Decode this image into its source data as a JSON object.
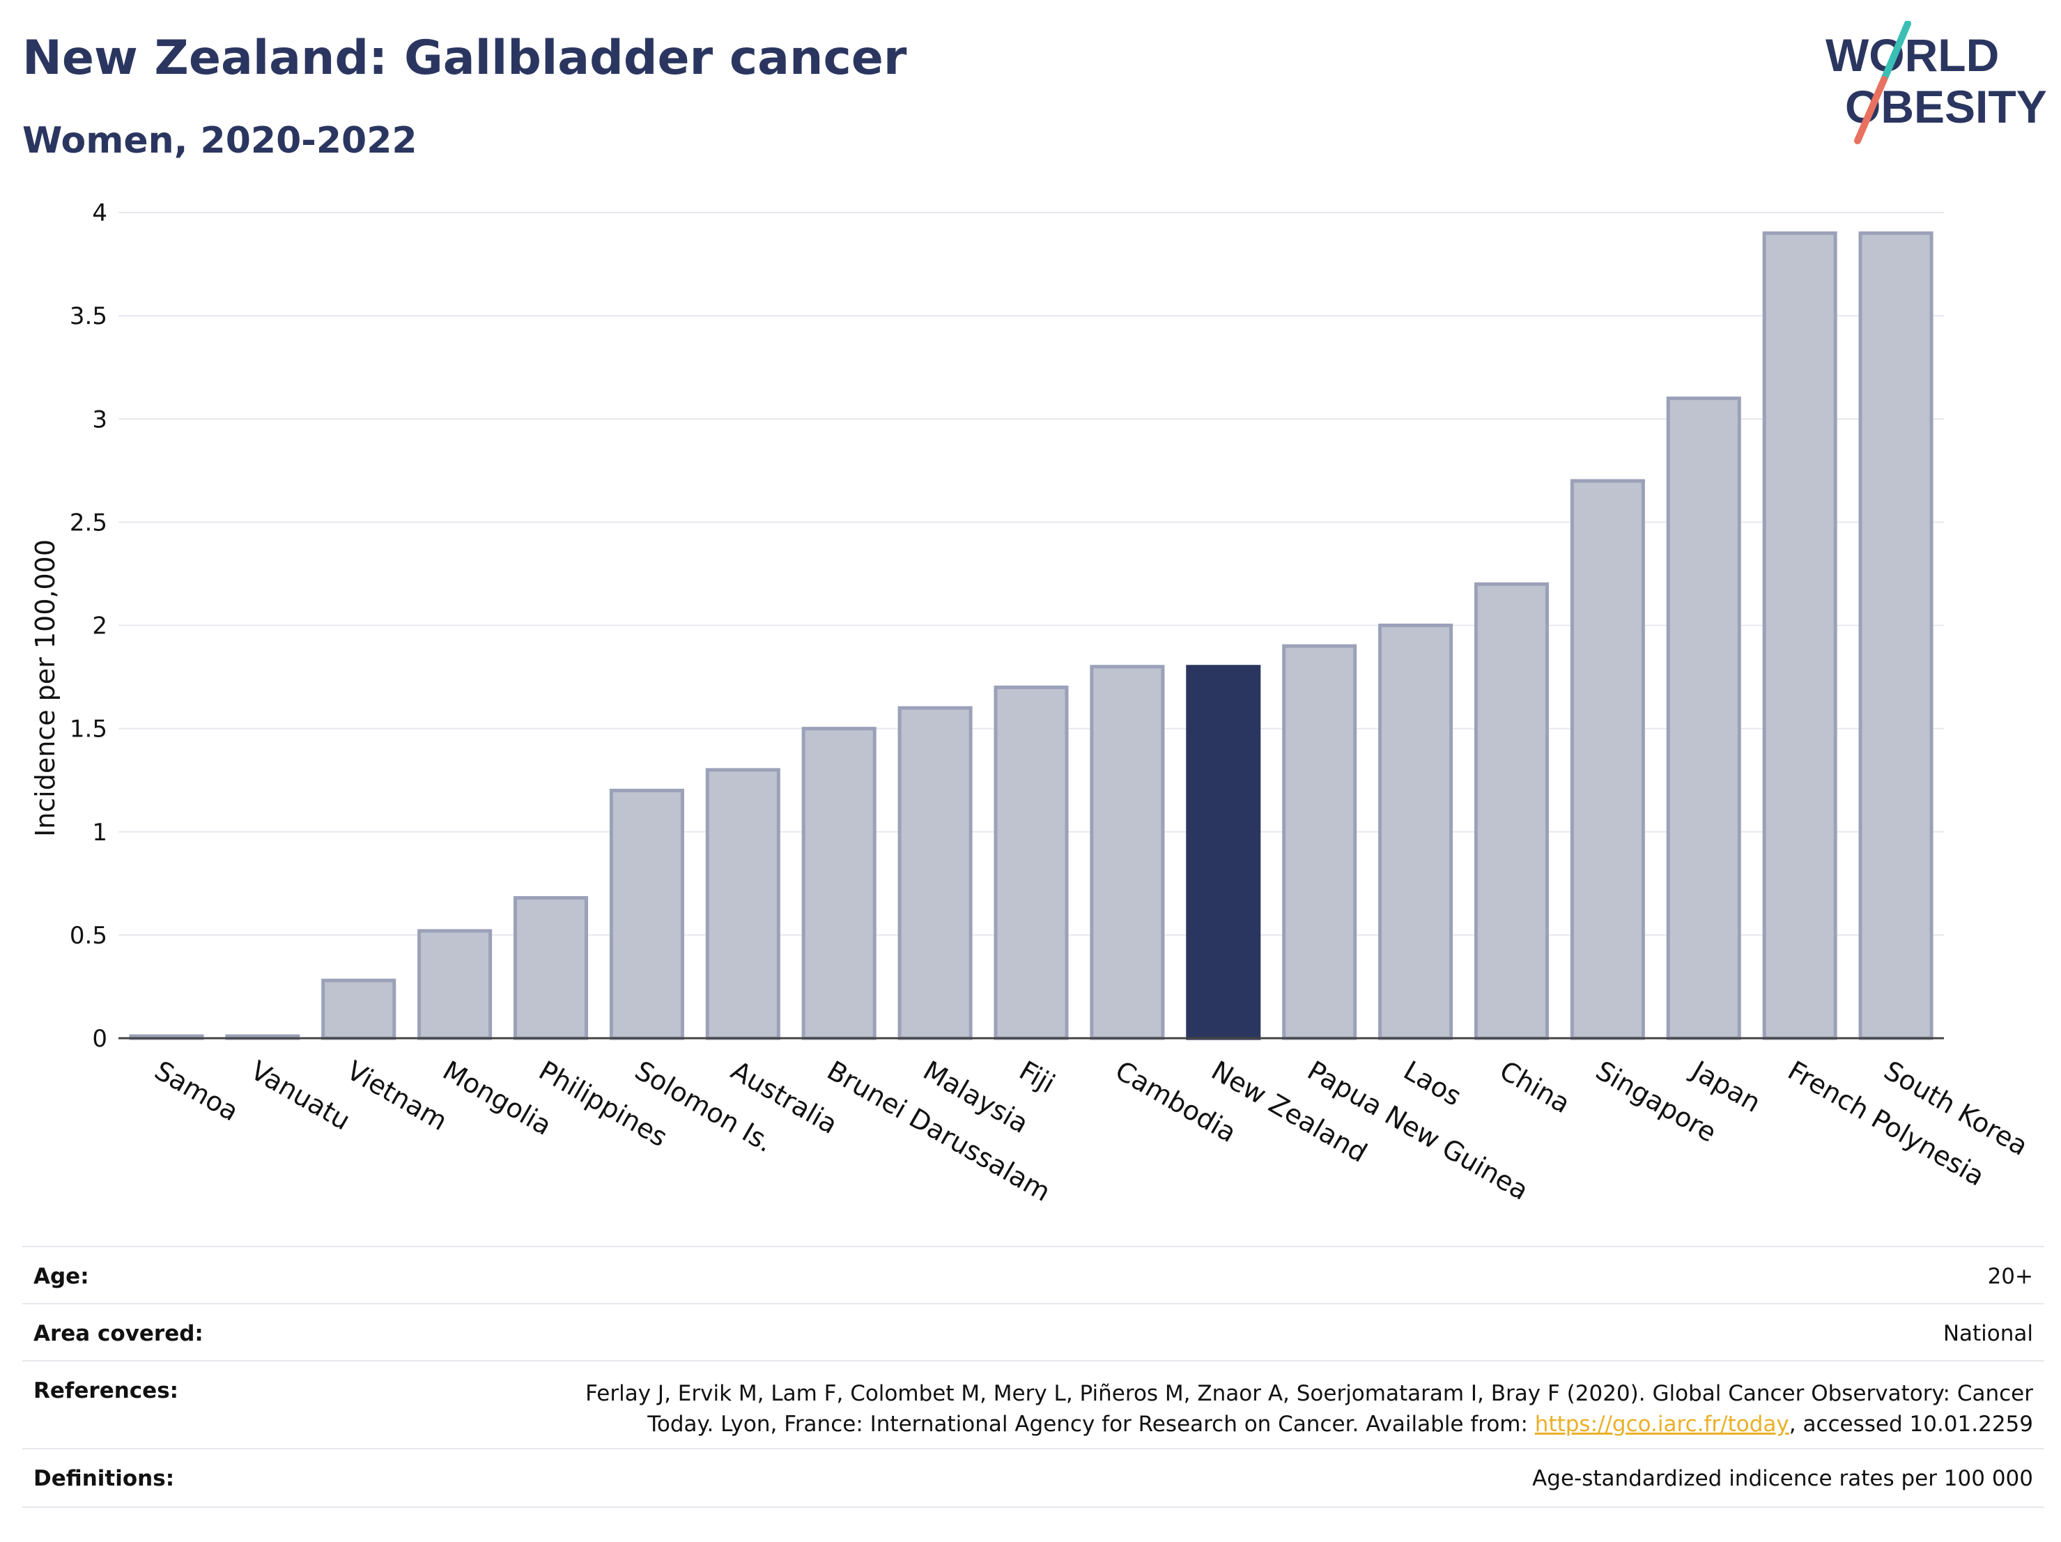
{
  "header": {
    "title": "New Zealand: Gallbladder cancer",
    "subtitle": "Women, 2020-2022"
  },
  "logo": {
    "text_line1": "WORLD",
    "text_line2": "OBESITY",
    "color_text": "#2b3660",
    "color_slash_top": "#3bbfb5",
    "color_slash_bottom": "#e8715f"
  },
  "chart_data": {
    "type": "bar",
    "ylabel": "Incidence per 100,000",
    "xlabel": "",
    "ylim": [
      0,
      4
    ],
    "yticks": [
      0,
      0.5,
      1,
      1.5,
      2,
      2.5,
      3,
      3.5,
      4
    ],
    "ytick_labels": [
      "0",
      "0.5",
      "1",
      "1.5",
      "2",
      "2.5",
      "3",
      "3.5",
      "4"
    ],
    "grid": true,
    "highlight": "New Zealand",
    "colors": {
      "bar": "#bfc3d0",
      "bar_edge": "#9aa1b8",
      "highlight": "#2b3660"
    },
    "categories": [
      "Samoa",
      "Vanuatu",
      "Vietnam",
      "Mongolia",
      "Philippines",
      "Solomon Is.",
      "Australia",
      "Brunei Darussalam",
      "Malaysia",
      "Fiji",
      "Cambodia",
      "New Zealand",
      "Papua New Guinea",
      "Laos",
      "China",
      "Singapore",
      "Japan",
      "French Polynesia",
      "South Korea"
    ],
    "values": [
      0.01,
      0.01,
      0.28,
      0.52,
      0.68,
      1.2,
      1.3,
      1.5,
      1.6,
      1.7,
      1.8,
      1.8,
      1.9,
      2.0,
      2.2,
      2.7,
      3.1,
      3.9,
      3.9
    ]
  },
  "meta": {
    "age_label": "Age:",
    "age_value": "20+",
    "area_label": "Area covered:",
    "area_value": "National",
    "references_label": "References:",
    "references_line1": "Ferlay J, Ervik M, Lam F, Colombet M, Mery L, Piñeros M, Znaor A, Soerjomataram I, Bray F (2020). Global Cancer Observatory: Cancer",
    "references_line2_pre": "Today. Lyon, France: International Agency for Research on Cancer. Available from: ",
    "references_link": "https://gco.iarc.fr/today",
    "references_line2_post": ", accessed 10.01.2259",
    "definitions_label": "Definitions:",
    "definitions_value": "Age-standardized indicence rates per 100 000"
  }
}
